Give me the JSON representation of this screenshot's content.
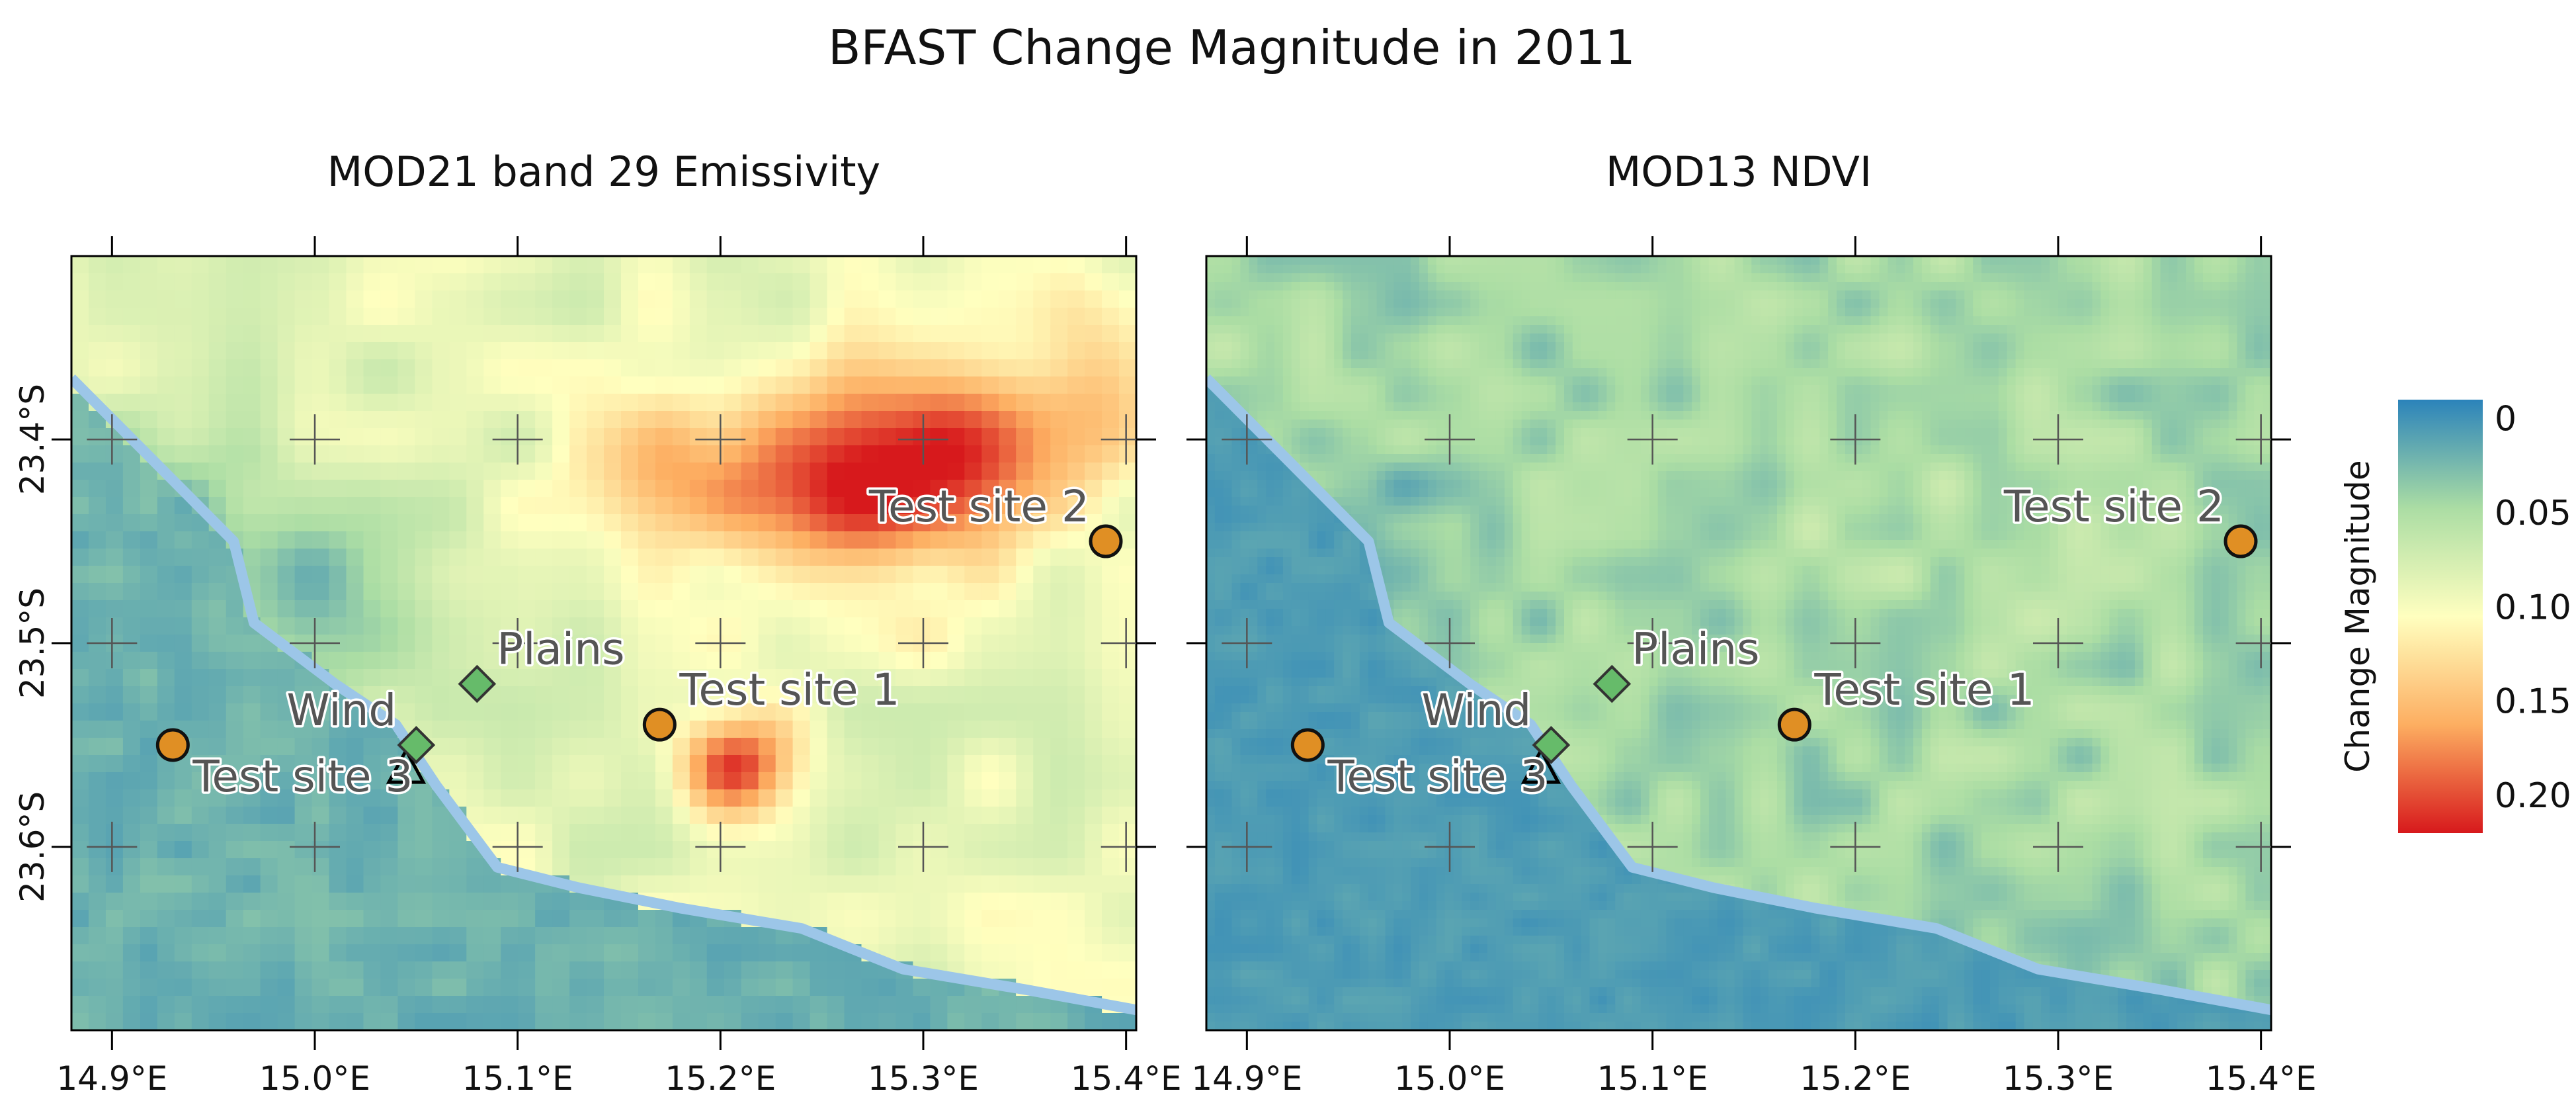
{
  "title": "BFAST Change Magnitude in 2011",
  "panels": [
    {
      "title": "MOD21 band 29 Emissivity",
      "id": "mod21"
    },
    {
      "title": "MOD13 NDVI",
      "id": "mod13"
    }
  ],
  "axes": {
    "x_ticks": [
      "14.9°E",
      "15.0°E",
      "15.1°E",
      "15.2°E",
      "15.3°E",
      "15.4°E"
    ],
    "x_values": [
      14.9,
      15.0,
      15.1,
      15.2,
      15.3,
      15.4
    ],
    "y_ticks": [
      "23.4°S",
      "23.5°S",
      "23.6°S"
    ],
    "y_values": [
      -23.4,
      -23.5,
      -23.6
    ],
    "x_range": [
      14.88,
      15.405
    ],
    "y_range": [
      -23.69,
      -23.31
    ]
  },
  "sites": [
    {
      "label": "Test site 1",
      "lon": 15.17,
      "lat": -23.54,
      "marker": "circle"
    },
    {
      "label": "Test site 2",
      "lon": 15.39,
      "lat": -23.45,
      "marker": "circle"
    },
    {
      "label": "Test site 3",
      "lon": 14.93,
      "lat": -23.55,
      "marker": "circle"
    },
    {
      "label": "Plains",
      "lon": 15.08,
      "lat": -23.52,
      "marker": "diamond"
    },
    {
      "label": "Wind",
      "lon": 15.05,
      "lat": -23.55,
      "marker": "diamond"
    },
    {
      "label": "",
      "lon": 15.045,
      "lat": -23.565,
      "marker": "triangle"
    }
  ],
  "legend": {
    "title": "Change Magnitude",
    "labels": [
      "0",
      "0.05",
      "0.10",
      "0.15",
      "0.20"
    ],
    "values": [
      0,
      0.05,
      0.1,
      0.15,
      0.2
    ],
    "range": [
      -0.01,
      0.22
    ],
    "colors": [
      "#2b83ba",
      "#abdda4",
      "#ffffbf",
      "#fdae61",
      "#d7191c"
    ]
  },
  "colors": {
    "site_fill": "#e08f24",
    "diamond_fill": "#66bb6a",
    "river": "#9cc6e8"
  }
}
